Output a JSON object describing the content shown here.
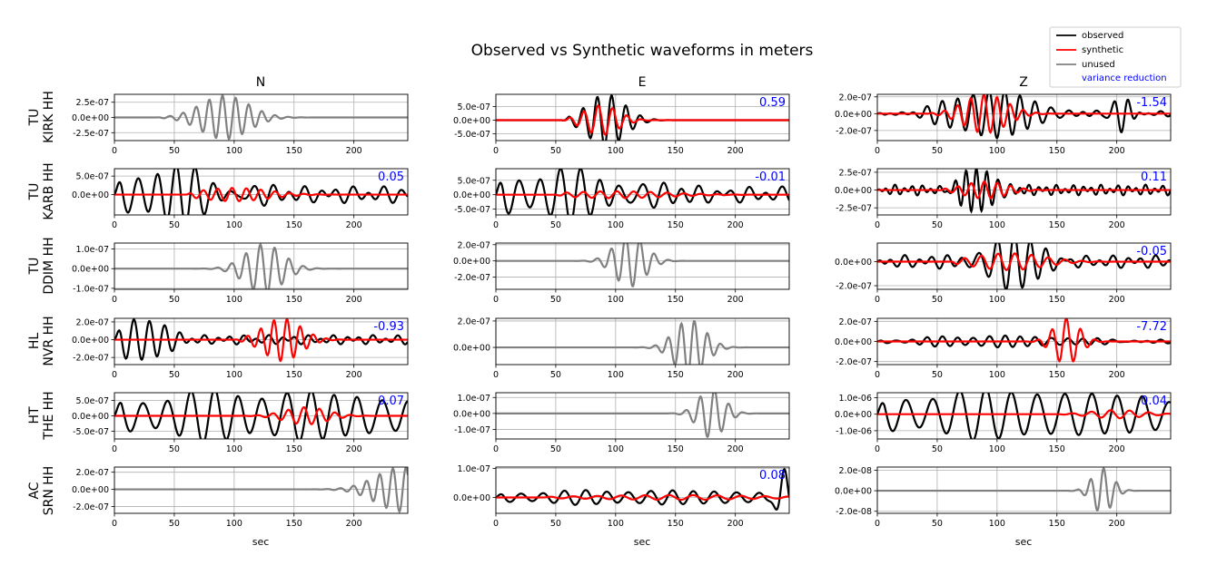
{
  "chart_data": {
    "type": "line",
    "title": "Observed vs Synthetic waveforms in meters",
    "xlabel": "sec",
    "xlim": [
      0,
      245
    ],
    "x_ticks": [
      0,
      50,
      100,
      150,
      200
    ],
    "x_tick_labels": [
      "0",
      "50",
      "100",
      "150",
      "200"
    ],
    "grid": true,
    "columns": [
      "N",
      "E",
      "Z"
    ],
    "stations": [
      {
        "network": "TU",
        "station": "KIRK HH"
      },
      {
        "network": "TU",
        "station": "KARB HH"
      },
      {
        "network": "TU",
        "station": "DDIM HH"
      },
      {
        "network": "HL",
        "station": "NVR HH"
      },
      {
        "network": "HT",
        "station": "THE HH"
      },
      {
        "network": "AC",
        "station": "SRN HH"
      }
    ],
    "legend": {
      "position": "top-right",
      "entries": [
        {
          "label": "observed",
          "color": "#000000",
          "kind": "line"
        },
        {
          "label": "synthetic",
          "color": "#ff0000",
          "kind": "line"
        },
        {
          "label": "unused",
          "color": "#808080",
          "kind": "line"
        },
        {
          "label": "variance reduction",
          "color": "#0000ff",
          "kind": "text"
        }
      ]
    },
    "colors": {
      "observed": "#000000",
      "synthetic": "#ff0000",
      "unused": "#808080",
      "vr": "#0000ff"
    },
    "panels": [
      {
        "row": 0,
        "col": 0,
        "used": false,
        "vr": "",
        "ylim": [
          -3.8e-07,
          3.8e-07
        ],
        "yticks": [
          2.5e-07,
          0,
          -2.5e-07
        ],
        "ytick_labels": [
          "2.5e-07",
          "0.0e+00",
          "-2.5e-07"
        ],
        "unused": {
          "start": 35,
          "amp": 3.6e-07,
          "center": 92,
          "width": 28,
          "period": 11,
          "phase": 0.3
        }
      },
      {
        "row": 0,
        "col": 1,
        "used": true,
        "vr": "0.59",
        "ylim": [
          -7.5e-07,
          9.5e-07
        ],
        "yticks": [
          5e-07,
          0,
          -5e-07
        ],
        "ytick_labels": [
          "5.0e-07",
          "0.0e+00",
          "-5.0e-07"
        ],
        "obs": {
          "start": 55,
          "amp": 9.5e-07,
          "center": 92,
          "width": 22,
          "period": 12,
          "phase": 1.2,
          "noise": 0
        },
        "syn": {
          "start": 55,
          "amp": 5.5e-07,
          "center": 88,
          "width": 20,
          "period": 12,
          "phase": 0.8
        }
      },
      {
        "row": 0,
        "col": 2,
        "used": true,
        "vr": "-1.54",
        "ylim": [
          -3.2e-07,
          2.3e-07
        ],
        "yticks": [
          2e-07,
          0,
          -2e-07
        ],
        "ytick_labels": [
          "2.0e-07",
          "0.0e+00",
          "-2.0e-07"
        ],
        "obs": {
          "start": 0,
          "amp": 2.8e-07,
          "center": 95,
          "width": 45,
          "period": 13,
          "phase": 0.5,
          "noise": 0.12,
          "tail": {
            "center": 205,
            "amp": 2.4e-07,
            "width": 10
          }
        },
        "syn": {
          "start": 40,
          "amp": 2.3e-07,
          "center": 90,
          "width": 25,
          "period": 11,
          "phase": 1.0
        }
      },
      {
        "row": 1,
        "col": 0,
        "used": true,
        "vr": "0.05",
        "ylim": [
          -5.5e-07,
          7e-07
        ],
        "yticks": [
          5e-07,
          0
        ],
        "ytick_labels": [
          "5.0e-07",
          "0.0e+00"
        ],
        "obs": {
          "start": 0,
          "amp": 6.8e-07,
          "center": 40,
          "width": 60,
          "period": 16,
          "phase": 0.2,
          "noise": 0.35
        },
        "syn": {
          "start": 60,
          "amp": 1.8e-07,
          "center": 100,
          "width": 40,
          "period": 12,
          "phase": 0.4
        }
      },
      {
        "row": 1,
        "col": 1,
        "used": true,
        "vr": "-0.01",
        "ylim": [
          -7e-07,
          9e-07
        ],
        "yticks": [
          5e-07,
          0,
          -5e-07
        ],
        "ytick_labels": [
          "5.0e-07",
          "0.0e+00",
          "-5.0e-07"
        ],
        "obs": {
          "start": 0,
          "amp": 7.5e-07,
          "center": 40,
          "width": 90,
          "period": 17,
          "phase": 0.6,
          "noise": 0.4
        },
        "syn": {
          "start": 50,
          "amp": 1.2e-07,
          "center": 100,
          "width": 60,
          "period": 14,
          "phase": 0.2
        }
      },
      {
        "row": 1,
        "col": 2,
        "used": true,
        "vr": "0.11",
        "ylim": [
          -3.5e-07,
          3e-07
        ],
        "yticks": [
          2.5e-07,
          0,
          -2.5e-07
        ],
        "ytick_labels": [
          "2.5e-07",
          "0.0e+00",
          "-2.5e-07"
        ],
        "obs": {
          "start": 0,
          "amp": 3e-07,
          "center": 85,
          "width": 20,
          "period": 9,
          "phase": 0.3,
          "noise": 0.25
        },
        "syn": {
          "start": 50,
          "amp": 1.2e-07,
          "center": 90,
          "width": 25,
          "period": 11,
          "phase": 0.8
        }
      },
      {
        "row": 2,
        "col": 0,
        "used": false,
        "vr": "",
        "ylim": [
          -1.05e-07,
          1.3e-07
        ],
        "yticks": [
          1e-07,
          0,
          -1e-07
        ],
        "ytick_labels": [
          "1.0e-07",
          "0.0e+00",
          "-1.0e-07"
        ],
        "unused": {
          "start": 45,
          "amp": 1.25e-07,
          "center": 125,
          "width": 22,
          "period": 12,
          "phase": 0.6
        }
      },
      {
        "row": 2,
        "col": 1,
        "used": false,
        "vr": "",
        "ylim": [
          -3.5e-07,
          2.2e-07
        ],
        "yticks": [
          2e-07,
          0,
          -2e-07
        ],
        "ytick_labels": [
          "2.0e-07",
          "0.0e+00",
          "-2.0e-07"
        ],
        "unused": {
          "start": 60,
          "amp": 3.2e-07,
          "center": 112,
          "width": 18,
          "period": 12,
          "phase": 1.4
        }
      },
      {
        "row": 2,
        "col": 2,
        "used": true,
        "vr": "-0.05",
        "ylim": [
          -2.3e-07,
          1.55e-07
        ],
        "yticks": [
          0,
          -2e-07
        ],
        "ytick_labels": [
          "0.0e+00",
          "-2.0e-07"
        ],
        "obs": {
          "start": 0,
          "amp": 2.2e-07,
          "center": 112,
          "width": 30,
          "period": 14,
          "phase": 0.7,
          "noise": 0.25
        },
        "syn": {
          "start": 60,
          "amp": 7e-08,
          "center": 110,
          "width": 40,
          "period": 14,
          "phase": 0.3
        }
      },
      {
        "row": 3,
        "col": 0,
        "used": true,
        "vr": "-0.93",
        "ylim": [
          -2.8e-07,
          2.4e-07
        ],
        "yticks": [
          2e-07,
          0,
          -2e-07
        ],
        "ytick_labels": [
          "2.0e-07",
          "0.0e+00",
          "-2.0e-07"
        ],
        "obs": {
          "start": 0,
          "amp": 2.7e-07,
          "center": 20,
          "width": 25,
          "period": 13,
          "phase": 0.1,
          "noise": 0.2
        },
        "syn": {
          "start": 100,
          "amp": 2.4e-07,
          "center": 140,
          "width": 22,
          "period": 11,
          "phase": 0.9
        }
      },
      {
        "row": 3,
        "col": 1,
        "used": false,
        "vr": "",
        "ylim": [
          -1.3e-07,
          2.2e-07
        ],
        "yticks": [
          2e-07,
          0
        ],
        "ytick_labels": [
          "2.0e-07",
          "0.0e+00"
        ],
        "unused": {
          "start": 55,
          "amp": 2.1e-07,
          "center": 162,
          "width": 18,
          "period": 11,
          "phase": 1.1
        }
      },
      {
        "row": 3,
        "col": 2,
        "used": true,
        "vr": "-7.72",
        "ylim": [
          -2.3e-07,
          2.3e-07
        ],
        "yticks": [
          2e-07,
          0,
          -2e-07
        ],
        "ytick_labels": [
          "2.0e-07",
          "0.0e+00",
          "-2.0e-07"
        ],
        "obs": {
          "start": 0,
          "amp": 5e-08,
          "center": 100,
          "width": 90,
          "period": 13,
          "phase": 0.4,
          "noise": 0.3
        },
        "syn": {
          "start": 80,
          "amp": 2.3e-07,
          "center": 158,
          "width": 15,
          "period": 12,
          "phase": 0.6
        }
      },
      {
        "row": 4,
        "col": 0,
        "used": true,
        "vr": "0.07",
        "ylim": [
          -7.5e-07,
          7.5e-07
        ],
        "yticks": [
          5e-07,
          0,
          -5e-07
        ],
        "ytick_labels": [
          "5.0e-07",
          "0.0e+00",
          "-5.0e-07"
        ],
        "obs": {
          "start": 0,
          "amp": 7.2e-07,
          "center": 120,
          "width": 200,
          "period": 20,
          "phase": 0.4,
          "noise": 0.3
        },
        "syn": {
          "start": 100,
          "amp": 2.8e-07,
          "center": 160,
          "width": 25,
          "period": 13,
          "phase": 0.5
        }
      },
      {
        "row": 4,
        "col": 1,
        "used": false,
        "vr": "",
        "ylim": [
          -1.6e-07,
          1.3e-07
        ],
        "yticks": [
          1e-07,
          0,
          -1e-07
        ],
        "ytick_labels": [
          "1.0e-07",
          "0.0e+00",
          "-1.0e-07"
        ],
        "unused": {
          "start": 70,
          "amp": 1.55e-07,
          "center": 180,
          "width": 15,
          "period": 12,
          "phase": 0.2
        }
      },
      {
        "row": 4,
        "col": 2,
        "used": true,
        "vr": "0.04",
        "ylim": [
          -1.5e-06,
          1.3e-06
        ],
        "yticks": [
          1e-06,
          0,
          -1e-06
        ],
        "ytick_labels": [
          "1.0e-06",
          "0.0e+00",
          "-1.0e-06"
        ],
        "obs": {
          "start": 0,
          "amp": 1.35e-06,
          "center": 110,
          "width": 180,
          "period": 22,
          "phase": 0.9,
          "noise": 0.25
        },
        "syn": {
          "start": 150,
          "amp": 2.5e-07,
          "center": 200,
          "width": 30,
          "period": 16,
          "phase": 0.5
        }
      },
      {
        "row": 5,
        "col": 0,
        "used": false,
        "vr": "",
        "ylim": [
          -2.8e-07,
          2.6e-07
        ],
        "yticks": [
          2e-07,
          0,
          -2e-07
        ],
        "ytick_labels": [
          "2.0e-07",
          "0.0e+00",
          "-2.0e-07"
        ],
        "unused": {
          "start": 160,
          "amp": 2.6e-07,
          "center": 240,
          "width": 30,
          "period": 11,
          "phase": 0.7
        }
      },
      {
        "row": 5,
        "col": 1,
        "used": true,
        "vr": "0.08",
        "ylim": [
          -5.5e-08,
          1.05e-07
        ],
        "yticks": [
          1e-07,
          0
        ],
        "ytick_labels": [
          "1.0e-07",
          "0.0e+00"
        ],
        "obs": {
          "start": 0,
          "amp": 2.2e-08,
          "center": 120,
          "width": 200,
          "period": 18,
          "phase": 0.5,
          "noise": 0.25,
          "tail": {
            "center": 240,
            "amp": 1e-07,
            "width": 7
          }
        },
        "syn": {
          "start": 40,
          "amp": 8e-09,
          "center": 150,
          "width": 100,
          "period": 20,
          "phase": 0.1
        }
      },
      {
        "row": 5,
        "col": 2,
        "used": false,
        "vr": "",
        "ylim": [
          -2.2e-08,
          2.3e-08
        ],
        "yticks": [
          2e-08,
          0,
          -2e-08
        ],
        "ytick_labels": [
          "2.0e-08",
          "0.0e+00",
          "-2.0e-08"
        ],
        "unused": {
          "start": 100,
          "amp": 2.2e-08,
          "center": 188,
          "width": 12,
          "period": 11,
          "phase": 0.4
        }
      }
    ]
  }
}
